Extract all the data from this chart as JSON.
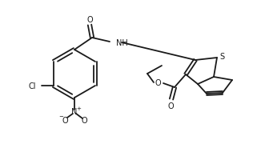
{
  "background_color": "#ffffff",
  "line_color": "#1a1a1a",
  "text_color": "#1a1a1a",
  "line_width": 1.3,
  "font_size": 7.0,
  "figw": 3.31,
  "figh": 2.01,
  "dpi": 100,
  "xlim": [
    0,
    331
  ],
  "ylim": [
    0,
    201
  ]
}
